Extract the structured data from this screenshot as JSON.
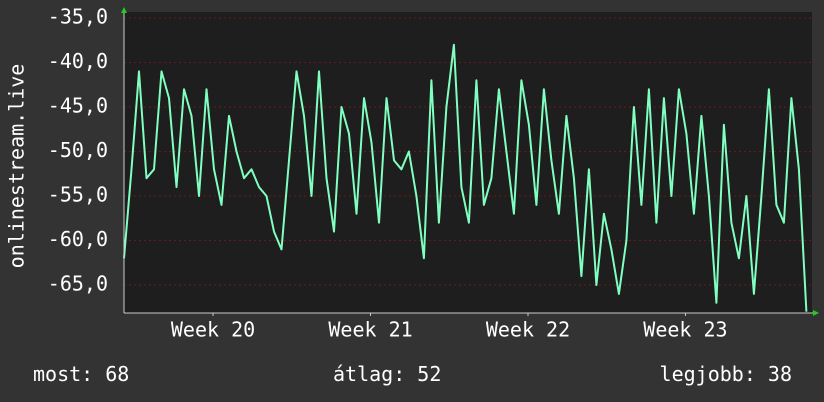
{
  "chart_data": {
    "type": "line",
    "ylabel": "onlinestream.live",
    "color": "#80ffc0",
    "xlim": [
      0,
      734
    ],
    "xticks": [
      {
        "value": 95,
        "label": "Week 20"
      },
      {
        "value": 263,
        "label": "Week 21"
      },
      {
        "value": 431,
        "label": "Week 22"
      },
      {
        "value": 599,
        "label": "Week 23"
      }
    ],
    "ylim": [
      -68.15,
      -34.33
    ],
    "yticks": [
      {
        "value": -35,
        "label": "-35,0"
      },
      {
        "value": -40,
        "label": "-40,0"
      },
      {
        "value": -45,
        "label": "-45,0"
      },
      {
        "value": -50,
        "label": "-50,0"
      },
      {
        "value": -55,
        "label": "-55,0"
      },
      {
        "value": -60,
        "label": "-60,0"
      },
      {
        "value": -65,
        "label": "-65,0"
      }
    ],
    "grid": true,
    "x": [
      0,
      8,
      16,
      24,
      32,
      40,
      48,
      56,
      64,
      72,
      80,
      88,
      96,
      104,
      112,
      120,
      128,
      136,
      144,
      152,
      160,
      168,
      176,
      184,
      192,
      200,
      208,
      216,
      224,
      232,
      240,
      248,
      256,
      264,
      272,
      280,
      288,
      296,
      304,
      312,
      320,
      328,
      336,
      344,
      352,
      360,
      368,
      376,
      384,
      392,
      400,
      408,
      416,
      424,
      432,
      440,
      448,
      456,
      464,
      472,
      480,
      488,
      496,
      504,
      512,
      520,
      528,
      536,
      544,
      552,
      560,
      568,
      576,
      584,
      592,
      600,
      608,
      616,
      624,
      632,
      640,
      648,
      656,
      664,
      672,
      680,
      688,
      696,
      704,
      712,
      720,
      728
    ],
    "values": [
      -62,
      -52,
      -41,
      -53,
      -52,
      -41,
      -44,
      -54,
      -43,
      -46,
      -55,
      -43,
      -52,
      -56,
      -46,
      -50,
      -53,
      -52,
      -54,
      -55,
      -59,
      -61,
      -51,
      -41,
      -46,
      -55,
      -41,
      -53,
      -59,
      -45,
      -48,
      -57,
      -44,
      -49,
      -58,
      -44,
      -51,
      -52,
      -50,
      -55,
      -62,
      -42,
      -58,
      -45,
      -38,
      -54,
      -58,
      -42,
      -56,
      -53,
      -43,
      -50,
      -57,
      -42,
      -47,
      -56,
      -43,
      -51,
      -57,
      -46,
      -53,
      -64,
      -52,
      -65,
      -57,
      -61,
      -66,
      -60,
      -45,
      -56,
      -43,
      -58,
      -44,
      -55,
      -43,
      -48,
      -57,
      -46,
      -55,
      -67,
      -47,
      -58,
      -62,
      -55,
      -66,
      -55,
      -43,
      -56,
      -58,
      -44,
      -52,
      -68
    ],
    "stats": [
      {
        "label": "most:",
        "value": 68
      },
      {
        "label": "átlag:",
        "value": 52
      },
      {
        "label": "legjobb:",
        "value": 38
      }
    ]
  }
}
